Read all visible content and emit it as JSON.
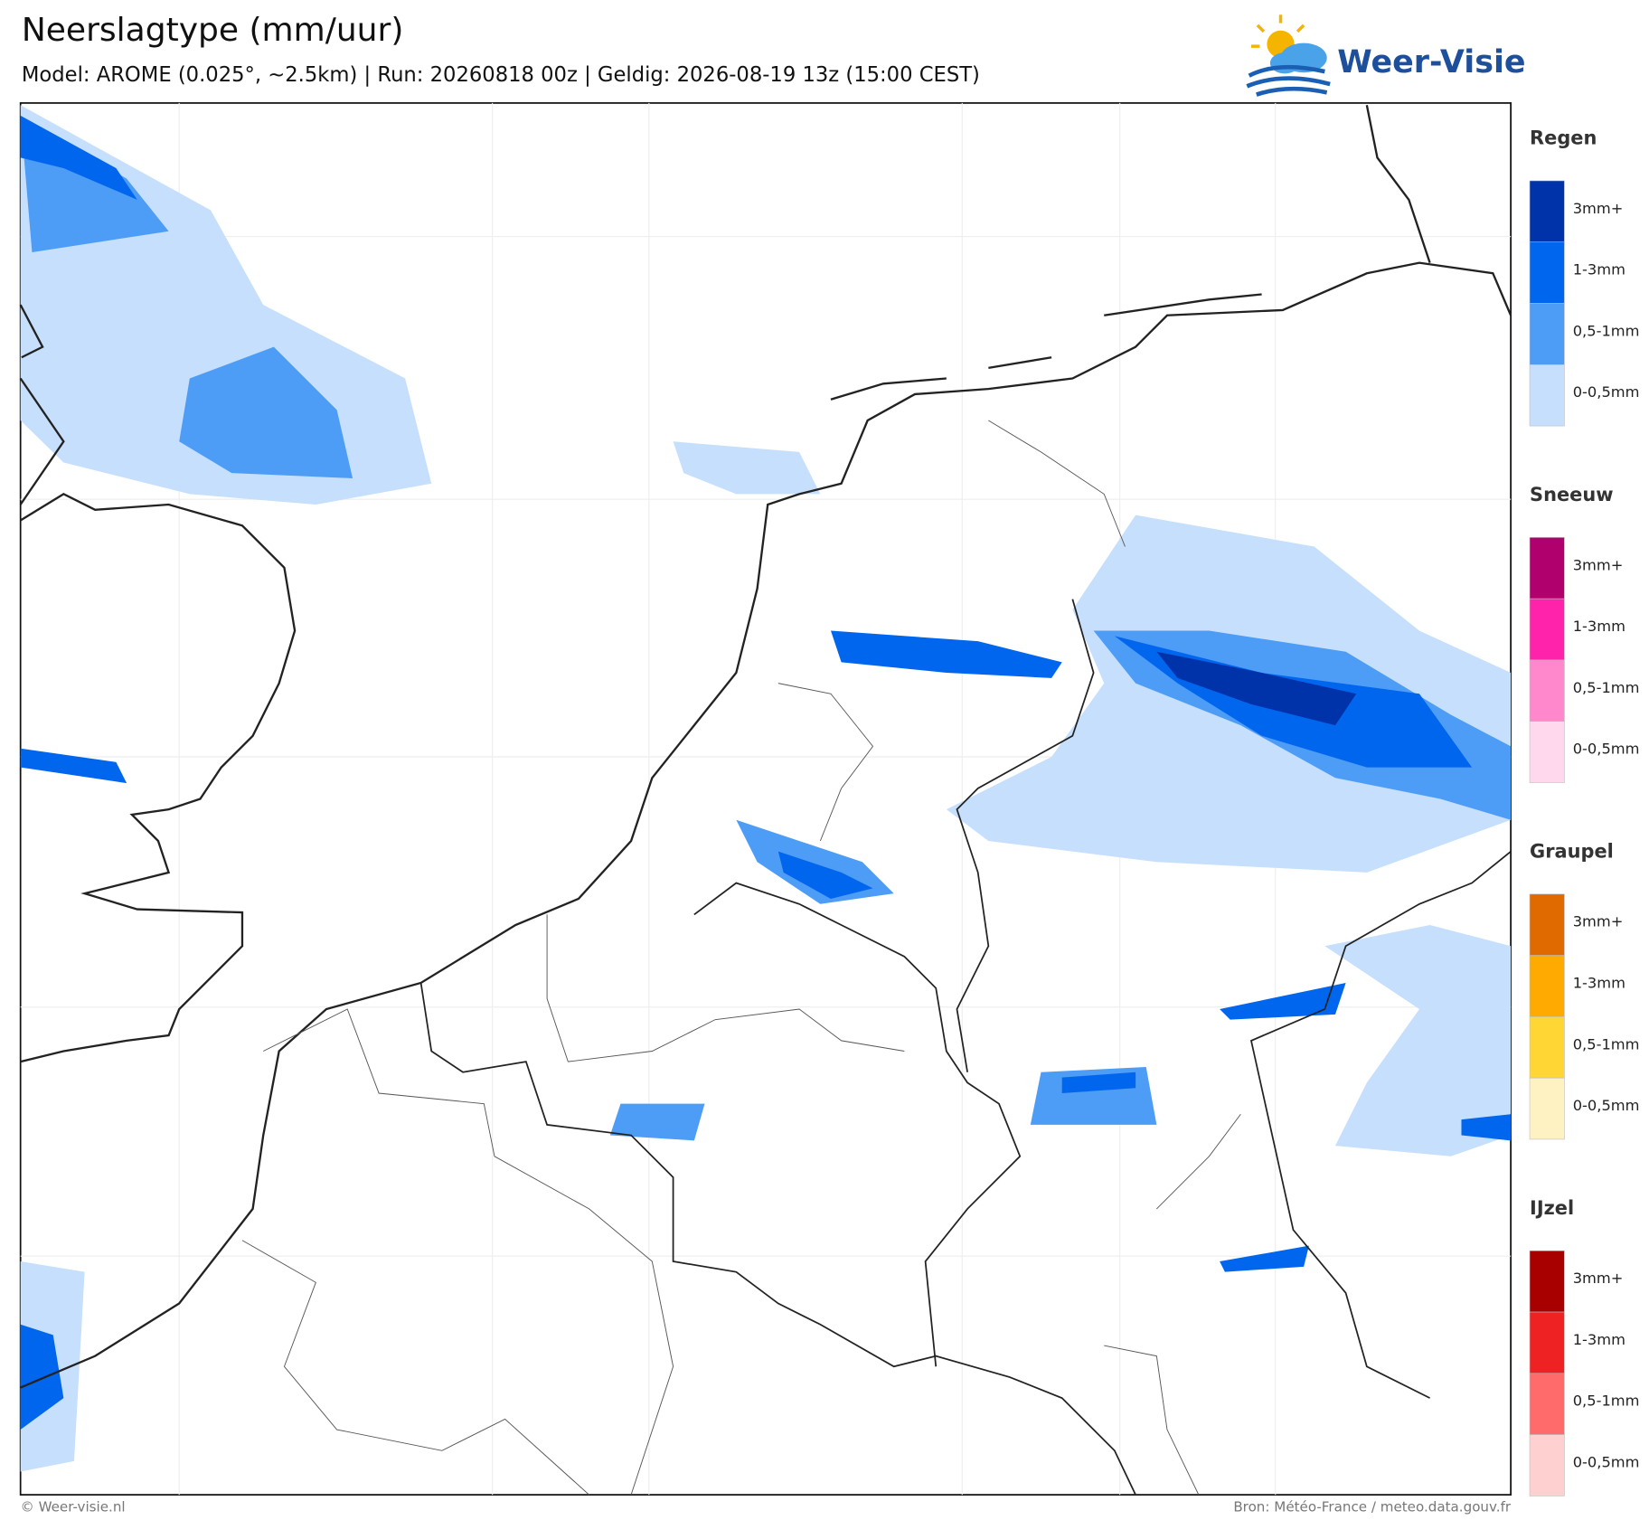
{
  "header": {
    "title": "Neerslagtype (mm/uur)",
    "subtitle": "Model: AROME (0.025°, ~2.5km)  |  Run: 20260818 00z  |  Geldig: 2026-08-19 13z (15:00 CEST)",
    "logo": "Weer-Visie"
  },
  "legend": [
    {
      "title": "Regen",
      "entries": [
        {
          "label": "3mm+",
          "color": "#0033aa"
        },
        {
          "label": "1-3mm",
          "color": "#0066ee"
        },
        {
          "label": "0,5-1mm",
          "color": "#4d9cf5"
        },
        {
          "label": "0-0,5mm",
          "color": "#c6dffc"
        }
      ]
    },
    {
      "title": "Sneeuw",
      "entries": [
        {
          "label": "3mm+",
          "color": "#b0006e"
        },
        {
          "label": "1-3mm",
          "color": "#ff22aa"
        },
        {
          "label": "0,5-1mm",
          "color": "#ff88cc"
        },
        {
          "label": "0-0,5mm",
          "color": "#ffd8ee"
        }
      ]
    },
    {
      "title": "Graupel",
      "entries": [
        {
          "label": "3mm+",
          "color": "#e06a00"
        },
        {
          "label": "1-3mm",
          "color": "#ffaa00"
        },
        {
          "label": "0,5-1mm",
          "color": "#ffd633"
        },
        {
          "label": "0-0,5mm",
          "color": "#fff2c2"
        }
      ]
    },
    {
      "title": "IJzel",
      "entries": [
        {
          "label": "3mm+",
          "color": "#a80000"
        },
        {
          "label": "1-3mm",
          "color": "#ee2222"
        },
        {
          "label": "0,5-1mm",
          "color": "#ff6b6b"
        },
        {
          "label": "0-0,5mm",
          "color": "#ffd0d0"
        }
      ]
    }
  ],
  "footer": {
    "left": "© Weer-visie.nl",
    "right": "Bron: Météo-France / meteo.data.gouv.fr"
  }
}
